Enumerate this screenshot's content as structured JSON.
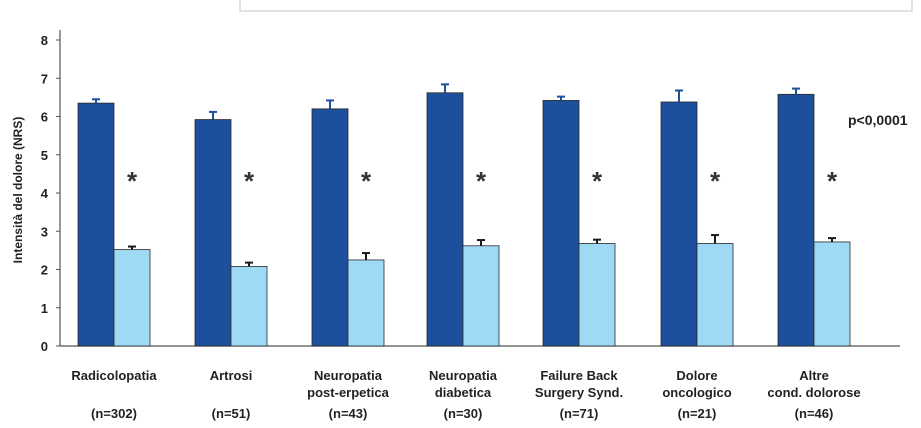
{
  "chart_data": {
    "type": "bar",
    "ylabel": "Intensità del dolore (NRS)",
    "ylim": [
      0,
      8
    ],
    "yticks": [
      0,
      1,
      2,
      3,
      4,
      5,
      6,
      7,
      8
    ],
    "categories": [
      [
        "Radicolopatia"
      ],
      [
        "Artrosi"
      ],
      [
        "Neuropatia",
        "post-erpetica"
      ],
      [
        "Neuropatia",
        "diabetica"
      ],
      [
        "Failure Back",
        "Surgery Synd."
      ],
      [
        "Dolore",
        "oncologico"
      ],
      [
        "Altre",
        "cond. dolorose"
      ]
    ],
    "n_labels": [
      "(n=302)",
      "(n=51)",
      "(n=43)",
      "(n=30)",
      "(n=71)",
      "(n=21)",
      "(n=46)"
    ],
    "series": [
      {
        "values": [
          6.35,
          5.92,
          6.2,
          6.62,
          6.42,
          6.38,
          6.58
        ],
        "errors": [
          0.1,
          0.2,
          0.22,
          0.22,
          0.1,
          0.3,
          0.15
        ],
        "color": "#1c4f9c"
      },
      {
        "values": [
          2.52,
          2.08,
          2.25,
          2.62,
          2.68,
          2.68,
          2.72
        ],
        "errors": [
          0.08,
          0.1,
          0.18,
          0.15,
          0.1,
          0.22,
          0.1
        ],
        "color": "#9fdaf5"
      }
    ],
    "significance_marks": [
      "*",
      "*",
      "*",
      "*",
      "*",
      "*",
      "*"
    ],
    "annotation": "p<0,0001",
    "grid": false
  }
}
